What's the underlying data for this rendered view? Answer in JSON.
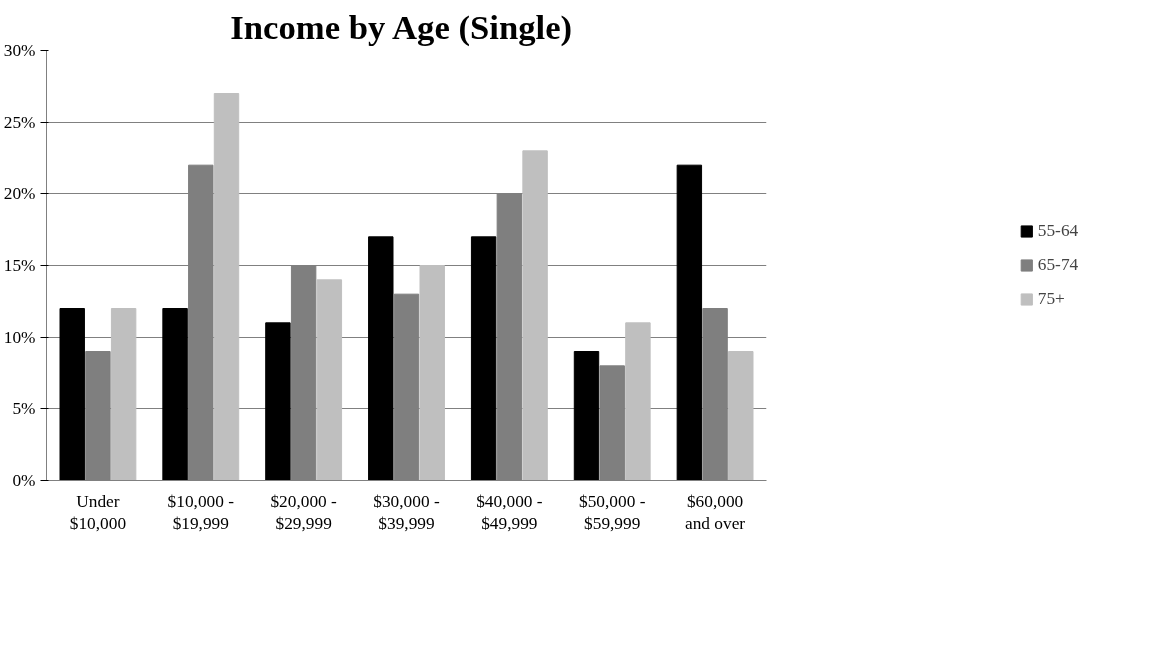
{
  "chart_data": {
    "type": "bar",
    "title": "Income by Age  (Single)",
    "categories": [
      "Under\n$10,000",
      "$10,000 -\n$19,999",
      "$20,000 -\n$29,999",
      "$30,000 -\n$39,999",
      "$40,000 -\n$49,999",
      "$50,000 -\n$59,999",
      "$60,000\nand over"
    ],
    "series": [
      {
        "name": "55-64",
        "color": "#000000",
        "values": [
          12,
          12,
          11,
          17,
          17,
          9,
          22
        ]
      },
      {
        "name": "65-74",
        "color": "#7f7f7f",
        "values": [
          9,
          22,
          15,
          13,
          20,
          8,
          12
        ]
      },
      {
        "name": "75+",
        "color": "#bfbfbf",
        "values": [
          12,
          27,
          14,
          15,
          23,
          11,
          9
        ]
      }
    ],
    "ylim": [
      0,
      30
    ],
    "yticks": [
      {
        "value": 0,
        "label": "0%"
      },
      {
        "value": 5,
        "label": "5%"
      },
      {
        "value": 10,
        "label": "10%"
      },
      {
        "value": 15,
        "label": "15%"
      },
      {
        "value": 20,
        "label": "20%"
      },
      {
        "value": 25,
        "label": "25%"
      },
      {
        "value": 30,
        "label": "30%"
      }
    ],
    "grid": "y",
    "legend": "right"
  }
}
